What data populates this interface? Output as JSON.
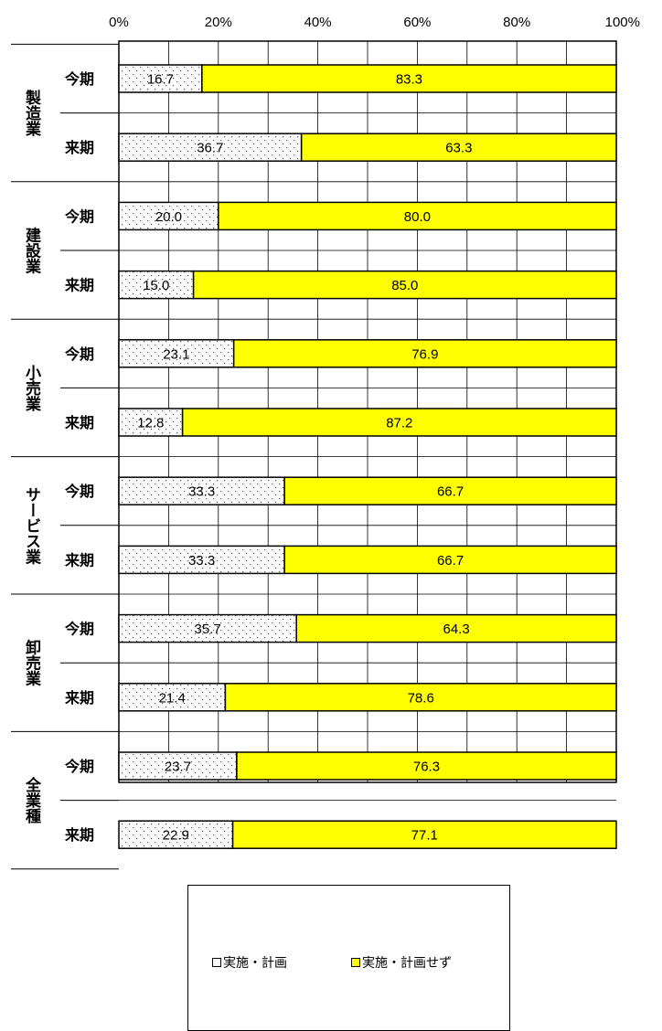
{
  "chart_data": {
    "type": "bar",
    "orientation": "horizontal-stacked-100",
    "xlim": [
      0,
      100
    ],
    "ticks": [
      "0%",
      "20%",
      "40%",
      "60%",
      "80%",
      "100%"
    ],
    "grid": true,
    "legend_position": "bottom",
    "groups": [
      {
        "label": "製造業",
        "rows": [
          {
            "label": "今期",
            "values": [
              16.7,
              83.3
            ]
          },
          {
            "label": "来期",
            "values": [
              36.7,
              63.3
            ]
          }
        ]
      },
      {
        "label": "建設業",
        "rows": [
          {
            "label": "今期",
            "values": [
              20.0,
              80.0
            ]
          },
          {
            "label": "来期",
            "values": [
              15.0,
              85.0
            ]
          }
        ]
      },
      {
        "label": "小売業",
        "rows": [
          {
            "label": "今期",
            "values": [
              23.1,
              76.9
            ]
          },
          {
            "label": "来期",
            "values": [
              12.8,
              87.2
            ]
          }
        ]
      },
      {
        "label": "サービス業",
        "rows": [
          {
            "label": "今期",
            "values": [
              33.3,
              66.7
            ]
          },
          {
            "label": "来期",
            "values": [
              33.3,
              66.7
            ]
          }
        ]
      },
      {
        "label": "卸売業",
        "rows": [
          {
            "label": "今期",
            "values": [
              35.7,
              64.3
            ]
          },
          {
            "label": "来期",
            "values": [
              21.4,
              78.6
            ]
          }
        ]
      },
      {
        "label": "全業種",
        "rows": [
          {
            "label": "今期",
            "values": [
              23.7,
              76.3
            ]
          },
          {
            "label": "来期",
            "values": [
              22.9,
              77.1
            ]
          }
        ]
      }
    ],
    "series": [
      {
        "name": "実施・計画",
        "color": "#ffffff",
        "pattern": "dotted"
      },
      {
        "name": "実施・計画せず",
        "color": "#ffff00"
      }
    ]
  }
}
